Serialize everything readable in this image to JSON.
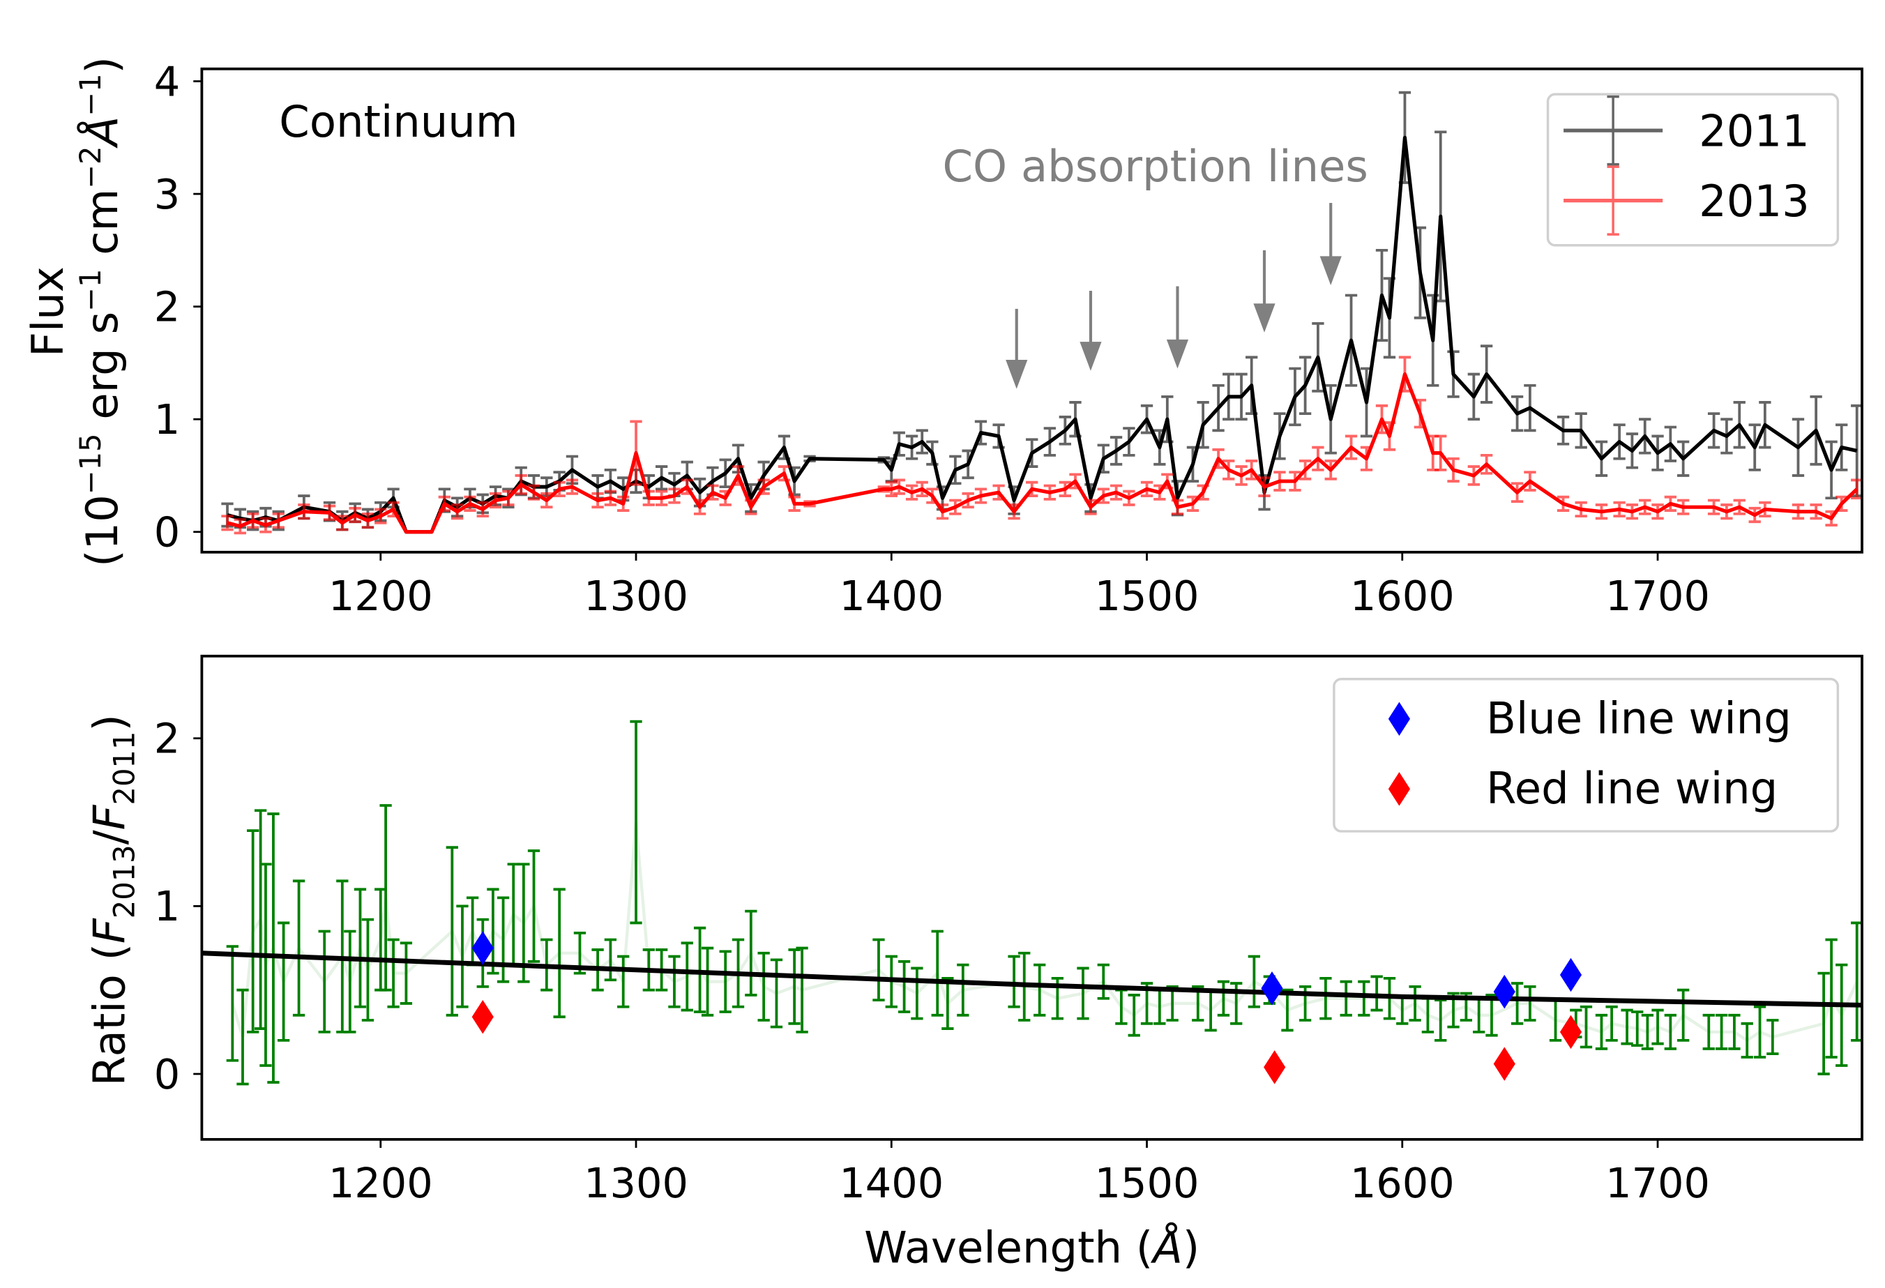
{
  "chart_data": [
    {
      "type": "line",
      "title": "",
      "annotation_text": "Continuum",
      "co_label": "CO absorption lines",
      "co_arrows": [
        {
          "x": 1449,
          "from": 1.98,
          "to": 1.27
        },
        {
          "x": 1478,
          "from": 2.14,
          "to": 1.43
        },
        {
          "x": 1512,
          "from": 2.18,
          "to": 1.45
        },
        {
          "x": 1546,
          "from": 2.5,
          "to": 1.77
        },
        {
          "x": 1572,
          "from": 2.92,
          "to": 2.19
        }
      ],
      "ylabel_line1": "Flux",
      "ylabel_line2_parts": [
        {
          "t": "(10",
          "sup": false
        },
        {
          "t": "−15",
          "sup": true
        },
        {
          "t": " erg s",
          "sup": false
        },
        {
          "t": "−1",
          "sup": true
        },
        {
          "t": " cm",
          "sup": false
        },
        {
          "t": "−2",
          "sup": true
        },
        {
          "t": "Å",
          "sup": false,
          "italic": true
        },
        {
          "t": "−1",
          "sup": true
        },
        {
          "t": ")",
          "sup": false
        }
      ],
      "xlim": [
        1130,
        1780
      ],
      "ylim": [
        -0.18,
        4.11
      ],
      "xticks": [
        1200,
        1300,
        1400,
        1500,
        1600,
        1700
      ],
      "yticks": [
        0,
        1,
        2,
        3,
        4
      ],
      "legend": {
        "placement": "top-right",
        "entries": [
          "2011",
          "2013"
        ]
      },
      "x": [
        1140,
        1145,
        1150,
        1155,
        1160,
        1170,
        1180,
        1185,
        1190,
        1195,
        1200,
        1205,
        1210,
        1220,
        1225,
        1230,
        1235,
        1240,
        1245,
        1250,
        1255,
        1260,
        1265,
        1270,
        1275,
        1285,
        1290,
        1295,
        1300,
        1305,
        1310,
        1315,
        1320,
        1325,
        1330,
        1335,
        1340,
        1345,
        1350,
        1358,
        1362,
        1368,
        1397,
        1400,
        1403,
        1408,
        1412,
        1416,
        1420,
        1425,
        1430,
        1435,
        1442,
        1448,
        1455,
        1462,
        1468,
        1472,
        1478,
        1483,
        1488,
        1493,
        1500,
        1505,
        1508,
        1512,
        1518,
        1522,
        1528,
        1532,
        1537,
        1541,
        1546,
        1552,
        1558,
        1562,
        1567,
        1572,
        1580,
        1586,
        1592,
        1595,
        1601,
        1607,
        1612,
        1615,
        1620,
        1628,
        1633,
        1645,
        1650,
        1663,
        1670,
        1678,
        1685,
        1690,
        1695,
        1700,
        1705,
        1710,
        1722,
        1727,
        1732,
        1738,
        1742,
        1755,
        1762,
        1768,
        1772,
        1778
      ],
      "series": [
        {
          "name": "2011",
          "color": "#000000",
          "values": [
            0.15,
            0.12,
            0.1,
            0.13,
            0.1,
            0.22,
            0.18,
            0.1,
            0.17,
            0.12,
            0.18,
            0.3,
            0.0,
            0.0,
            0.28,
            0.22,
            0.3,
            0.25,
            0.32,
            0.3,
            0.45,
            0.4,
            0.4,
            0.45,
            0.55,
            0.4,
            0.45,
            0.38,
            0.45,
            0.4,
            0.48,
            0.42,
            0.5,
            0.35,
            0.45,
            0.52,
            0.65,
            0.3,
            0.5,
            0.75,
            0.45,
            0.65,
            0.64,
            0.55,
            0.78,
            0.75,
            0.8,
            0.7,
            0.3,
            0.55,
            0.6,
            0.88,
            0.85,
            0.28,
            0.7,
            0.8,
            0.9,
            1.0,
            0.3,
            0.65,
            0.72,
            0.8,
            1.0,
            0.75,
            1.0,
            0.3,
            0.6,
            0.95,
            1.1,
            1.2,
            1.2,
            1.3,
            0.35,
            0.85,
            1.2,
            1.3,
            1.55,
            1.0,
            1.7,
            1.15,
            2.1,
            1.9,
            3.5,
            2.3,
            1.7,
            2.8,
            1.4,
            1.2,
            1.4,
            1.05,
            1.1,
            0.9,
            0.9,
            0.65,
            0.8,
            0.72,
            0.85,
            0.7,
            0.78,
            0.65,
            0.9,
            0.85,
            0.95,
            0.75,
            0.95,
            0.75,
            0.9,
            0.55,
            0.75,
            0.72
          ],
          "errors": [
            0.1,
            0.08,
            0.08,
            0.08,
            0.08,
            0.1,
            0.08,
            0.08,
            0.08,
            0.08,
            0.08,
            0.08,
            0.0,
            0.0,
            0.1,
            0.08,
            0.08,
            0.08,
            0.08,
            0.08,
            0.12,
            0.1,
            0.08,
            0.08,
            0.12,
            0.1,
            0.1,
            0.1,
            0.1,
            0.1,
            0.1,
            0.1,
            0.12,
            0.12,
            0.12,
            0.12,
            0.12,
            0.12,
            0.12,
            0.1,
            0.12,
            0.02,
            0.02,
            0.1,
            0.1,
            0.1,
            0.1,
            0.1,
            0.1,
            0.12,
            0.12,
            0.1,
            0.1,
            0.12,
            0.12,
            0.12,
            0.12,
            0.15,
            0.12,
            0.12,
            0.12,
            0.12,
            0.12,
            0.15,
            0.2,
            0.15,
            0.15,
            0.2,
            0.2,
            0.2,
            0.2,
            0.25,
            0.15,
            0.2,
            0.25,
            0.25,
            0.3,
            0.3,
            0.4,
            0.3,
            0.4,
            0.35,
            0.4,
            0.4,
            0.4,
            0.75,
            0.2,
            0.2,
            0.25,
            0.15,
            0.2,
            0.12,
            0.15,
            0.15,
            0.15,
            0.15,
            0.15,
            0.15,
            0.15,
            0.15,
            0.15,
            0.15,
            0.2,
            0.2,
            0.2,
            0.25,
            0.3,
            0.25,
            0.2,
            0.4
          ]
        },
        {
          "name": "2013",
          "color": "#ff0000",
          "values": [
            0.08,
            0.05,
            0.1,
            0.06,
            0.1,
            0.18,
            0.17,
            0.08,
            0.15,
            0.1,
            0.14,
            0.2,
            0.0,
            0.0,
            0.25,
            0.18,
            0.25,
            0.2,
            0.28,
            0.3,
            0.42,
            0.35,
            0.28,
            0.38,
            0.4,
            0.28,
            0.3,
            0.25,
            0.7,
            0.3,
            0.3,
            0.32,
            0.4,
            0.22,
            0.35,
            0.3,
            0.5,
            0.22,
            0.4,
            0.52,
            0.25,
            0.25,
            0.38,
            0.38,
            0.4,
            0.35,
            0.38,
            0.32,
            0.18,
            0.22,
            0.28,
            0.32,
            0.35,
            0.18,
            0.38,
            0.35,
            0.38,
            0.45,
            0.22,
            0.32,
            0.35,
            0.3,
            0.38,
            0.35,
            0.45,
            0.22,
            0.25,
            0.35,
            0.65,
            0.55,
            0.5,
            0.55,
            0.4,
            0.45,
            0.45,
            0.55,
            0.65,
            0.55,
            0.75,
            0.65,
            1.0,
            0.85,
            1.4,
            1.05,
            0.7,
            0.7,
            0.55,
            0.5,
            0.6,
            0.35,
            0.45,
            0.25,
            0.2,
            0.18,
            0.2,
            0.18,
            0.22,
            0.18,
            0.25,
            0.22,
            0.22,
            0.18,
            0.22,
            0.15,
            0.2,
            0.18,
            0.18,
            0.12,
            0.25,
            0.38
          ],
          "errors": [
            0.06,
            0.06,
            0.06,
            0.06,
            0.06,
            0.06,
            0.06,
            0.06,
            0.06,
            0.06,
            0.06,
            0.06,
            0.0,
            0.0,
            0.06,
            0.06,
            0.06,
            0.06,
            0.06,
            0.06,
            0.08,
            0.06,
            0.06,
            0.06,
            0.06,
            0.06,
            0.06,
            0.06,
            0.28,
            0.06,
            0.06,
            0.06,
            0.06,
            0.06,
            0.06,
            0.06,
            0.08,
            0.06,
            0.06,
            0.06,
            0.06,
            0.02,
            0.02,
            0.06,
            0.06,
            0.06,
            0.06,
            0.06,
            0.06,
            0.06,
            0.06,
            0.06,
            0.06,
            0.06,
            0.06,
            0.06,
            0.06,
            0.06,
            0.06,
            0.06,
            0.06,
            0.06,
            0.06,
            0.06,
            0.06,
            0.06,
            0.06,
            0.06,
            0.08,
            0.08,
            0.08,
            0.08,
            0.08,
            0.08,
            0.08,
            0.08,
            0.1,
            0.08,
            0.1,
            0.1,
            0.12,
            0.12,
            0.15,
            0.12,
            0.15,
            0.15,
            0.1,
            0.08,
            0.08,
            0.08,
            0.08,
            0.06,
            0.06,
            0.06,
            0.06,
            0.06,
            0.06,
            0.06,
            0.06,
            0.06,
            0.06,
            0.06,
            0.06,
            0.06,
            0.06,
            0.06,
            0.06,
            0.06,
            0.06,
            0.08
          ]
        }
      ]
    },
    {
      "type": "scatter",
      "xlabel_text": "Wavelength (",
      "xlabel_unit": "Å",
      "xlabel_close": ")",
      "ylabel_parts": [
        {
          "t": "Ratio (",
          "sub": false
        },
        {
          "t": "F",
          "sub": false,
          "italic": true
        },
        {
          "t": "2013",
          "sub": true
        },
        {
          "t": "/",
          "sub": false
        },
        {
          "t": "F",
          "sub": false,
          "italic": true
        },
        {
          "t": "2011",
          "sub": true
        },
        {
          "t": ")",
          "sub": false
        }
      ],
      "xlim": [
        1130,
        1780
      ],
      "ylim": [
        -0.39,
        2.49
      ],
      "xticks": [
        1200,
        1300,
        1400,
        1500,
        1600,
        1700
      ],
      "yticks": [
        0,
        1,
        2
      ],
      "legend": {
        "placement": "top-right",
        "entries": [
          "Blue line wing",
          "Red line wing"
        ]
      },
      "ratio_color": "#008000",
      "ratio": {
        "x": [
          1142,
          1146,
          1150,
          1153,
          1155,
          1158,
          1162,
          1168,
          1178,
          1185,
          1188,
          1192,
          1195,
          1200,
          1202,
          1205,
          1210,
          1228,
          1232,
          1236,
          1240,
          1244,
          1248,
          1252,
          1256,
          1260,
          1265,
          1270,
          1278,
          1285,
          1290,
          1295,
          1300,
          1305,
          1310,
          1315,
          1320,
          1325,
          1328,
          1335,
          1340,
          1345,
          1350,
          1355,
          1362,
          1365,
          1395,
          1400,
          1405,
          1410,
          1418,
          1422,
          1428,
          1448,
          1452,
          1458,
          1465,
          1475,
          1483,
          1490,
          1495,
          1500,
          1505,
          1510,
          1520,
          1525,
          1530,
          1535,
          1542,
          1548,
          1555,
          1562,
          1570,
          1578,
          1585,
          1590,
          1595,
          1600,
          1605,
          1610,
          1615,
          1620,
          1625,
          1630,
          1635,
          1645,
          1650,
          1660,
          1668,
          1672,
          1678,
          1682,
          1688,
          1692,
          1696,
          1700,
          1705,
          1710,
          1720,
          1725,
          1730,
          1735,
          1740,
          1745,
          1765,
          1768,
          1772,
          1778
        ],
        "values": [
          0.42,
          0.22,
          0.85,
          0.92,
          0.65,
          0.75,
          0.55,
          0.75,
          0.55,
          0.7,
          0.55,
          0.75,
          0.62,
          0.8,
          1.05,
          0.6,
          0.6,
          0.85,
          0.7,
          0.85,
          0.72,
          0.85,
          0.8,
          0.95,
          0.9,
          1.0,
          0.65,
          0.72,
          0.72,
          0.62,
          0.68,
          0.55,
          1.5,
          0.62,
          0.62,
          0.55,
          0.58,
          0.62,
          0.55,
          0.55,
          0.6,
          0.72,
          0.52,
          0.48,
          0.52,
          0.5,
          0.62,
          0.55,
          0.52,
          0.48,
          0.6,
          0.42,
          0.5,
          0.55,
          0.52,
          0.5,
          0.45,
          0.48,
          0.55,
          0.4,
          0.35,
          0.42,
          0.4,
          0.42,
          0.42,
          0.38,
          0.45,
          0.42,
          0.55,
          0.5,
          0.38,
          0.42,
          0.45,
          0.45,
          0.45,
          0.48,
          0.45,
          0.38,
          0.42,
          0.35,
          0.32,
          0.38,
          0.4,
          0.35,
          0.35,
          0.42,
          0.42,
          0.32,
          0.3,
          0.28,
          0.25,
          0.3,
          0.28,
          0.27,
          0.25,
          0.28,
          0.25,
          0.35,
          0.25,
          0.25,
          0.25,
          0.2,
          0.25,
          0.22,
          0.3,
          0.45,
          0.35,
          0.55
        ],
        "errors": [
          0.34,
          0.28,
          0.6,
          0.65,
          0.6,
          0.8,
          0.35,
          0.4,
          0.3,
          0.45,
          0.3,
          0.35,
          0.3,
          0.3,
          0.55,
          0.2,
          0.18,
          0.5,
          0.3,
          0.2,
          0.2,
          0.25,
          0.25,
          0.3,
          0.35,
          0.33,
          0.15,
          0.38,
          0.12,
          0.12,
          0.12,
          0.15,
          0.6,
          0.12,
          0.12,
          0.15,
          0.2,
          0.25,
          0.2,
          0.18,
          0.2,
          0.25,
          0.2,
          0.2,
          0.22,
          0.25,
          0.18,
          0.15,
          0.15,
          0.15,
          0.25,
          0.15,
          0.15,
          0.15,
          0.2,
          0.15,
          0.12,
          0.15,
          0.1,
          0.1,
          0.12,
          0.12,
          0.1,
          0.1,
          0.1,
          0.12,
          0.1,
          0.12,
          0.15,
          0.08,
          0.12,
          0.1,
          0.12,
          0.1,
          0.1,
          0.1,
          0.12,
          0.08,
          0.1,
          0.1,
          0.12,
          0.1,
          0.08,
          0.1,
          0.12,
          0.12,
          0.1,
          0.12,
          0.08,
          0.12,
          0.1,
          0.1,
          0.1,
          0.1,
          0.1,
          0.1,
          0.1,
          0.15,
          0.1,
          0.1,
          0.1,
          0.1,
          0.15,
          0.1,
          0.3,
          0.35,
          0.3,
          0.35
        ]
      },
      "fit_line": {
        "x": [
          1130,
          1300,
          1455,
          1600,
          1780
        ],
        "y": [
          0.72,
          0.62,
          0.53,
          0.46,
          0.41
        ],
        "color": "#000000"
      },
      "blue_wing": {
        "name": "Blue line wing",
        "color": "#0000ff",
        "x": [
          1240,
          1549,
          1640,
          1666
        ],
        "y": [
          0.75,
          0.51,
          0.49,
          0.59
        ]
      },
      "red_wing": {
        "name": "Red line wing",
        "color": "#ff0000",
        "x": [
          1240,
          1550,
          1640,
          1666
        ],
        "y": [
          0.34,
          0.04,
          0.06,
          0.25
        ]
      }
    }
  ]
}
